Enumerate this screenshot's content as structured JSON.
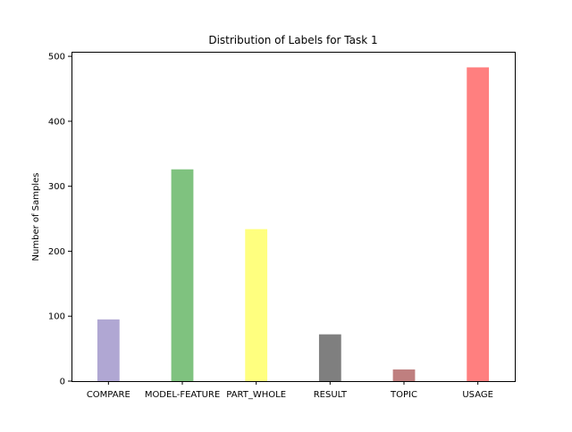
{
  "chart_data": {
    "type": "bar",
    "title": "Distribution of Labels for Task 1",
    "xlabel": "",
    "ylabel": "Number of Samples",
    "categories": [
      "COMPARE",
      "MODEL-FEATURE",
      "PART_WHOLE",
      "RESULT",
      "TOPIC",
      "USAGE"
    ],
    "values": [
      95,
      326,
      234,
      72,
      18,
      483
    ],
    "colors": [
      "#b0a7d3",
      "#7fc27f",
      "#ffff7f",
      "#7f7f7f",
      "#bf7f7f",
      "#ff7f7f"
    ],
    "ylim": [
      0,
      507
    ],
    "yticks": [
      0,
      100,
      200,
      300,
      400,
      500
    ],
    "grid": false
  }
}
